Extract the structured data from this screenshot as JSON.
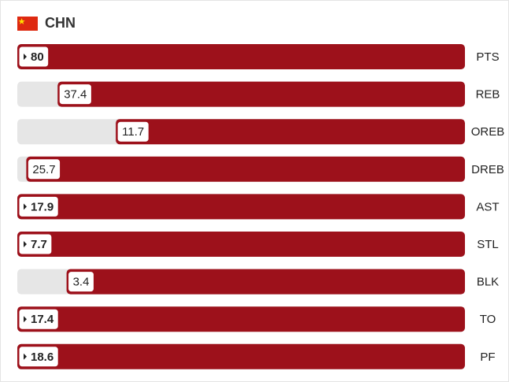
{
  "team": "CHN",
  "chart_data": {
    "type": "bar",
    "categories": [
      "PTS",
      "REB",
      "OREB",
      "DREB",
      "AST",
      "STL",
      "BLK",
      "TO",
      "PF"
    ],
    "values": [
      80,
      37.4,
      11.7,
      25.7,
      17.9,
      7.7,
      3.4,
      17.4,
      18.6
    ],
    "bar_share": [
      100,
      91,
      78,
      98,
      100,
      100,
      89,
      100,
      100
    ],
    "leader": [
      true,
      false,
      false,
      false,
      true,
      true,
      false,
      true,
      true
    ],
    "color": "#9d111b",
    "track_color": "#e6e6e6"
  }
}
